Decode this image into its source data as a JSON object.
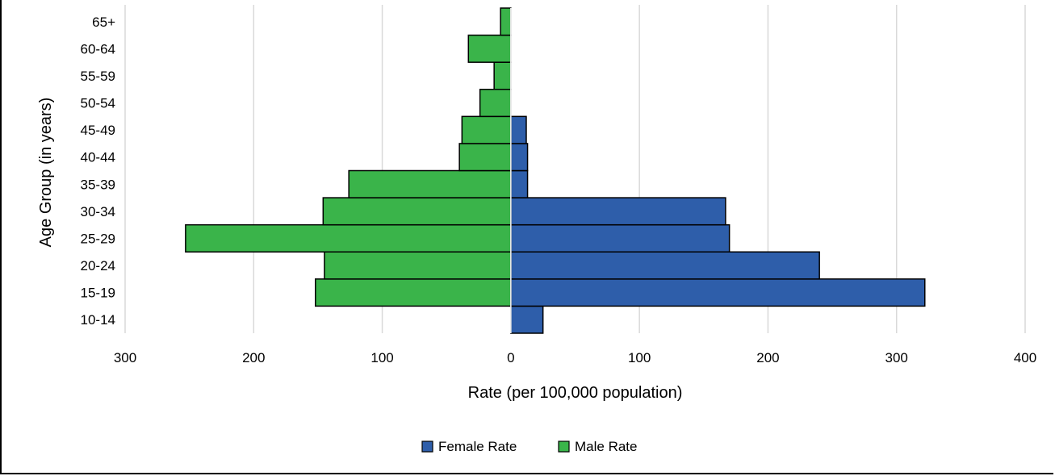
{
  "chart_data": {
    "type": "bar",
    "orientation": "horizontal",
    "layout": "population-pyramid",
    "categories": [
      "10-14",
      "15-19",
      "20-24",
      "25-29",
      "30-34",
      "35-39",
      "40-44",
      "45-49",
      "50-54",
      "55-59",
      "60-64",
      "65+"
    ],
    "series": [
      {
        "name": "Female Rate",
        "color": "#2E5EAA",
        "side": "right",
        "values": [
          25,
          322,
          240,
          170,
          167,
          13,
          13,
          12,
          0,
          0,
          0,
          0
        ]
      },
      {
        "name": "Male Rate",
        "color": "#3AB44A",
        "side": "left",
        "values": [
          0,
          152,
          145,
          253,
          146,
          126,
          40,
          38,
          24,
          13,
          33,
          8
        ]
      }
    ],
    "xlabel": "Rate (per 100,000 population)",
    "ylabel": "Age Group (in years)",
    "xlim": [
      -300,
      400
    ],
    "xticks": [
      -300,
      -200,
      -100,
      0,
      100,
      200,
      300,
      400
    ],
    "xtick_labels": [
      "300",
      "200",
      "100",
      "0",
      "100",
      "200",
      "300",
      "400"
    ],
    "grid": "vertical",
    "legend_position": "bottom"
  }
}
